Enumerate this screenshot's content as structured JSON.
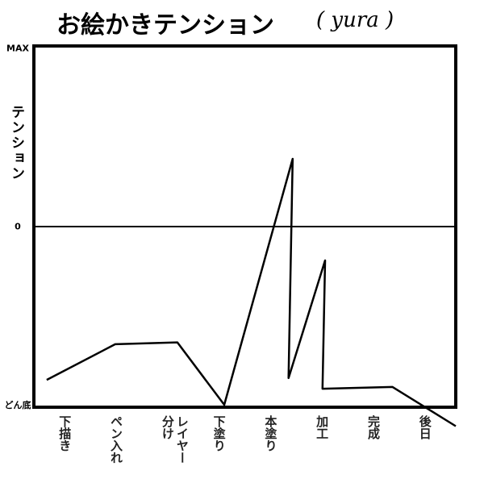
{
  "chart_data": {
    "type": "line",
    "title": "お絵かきテンション",
    "author": "( yura )",
    "ylabel": "テンション",
    "x": [
      -0.35,
      0.98,
      2.19,
      3.1,
      4.43,
      4.35,
      5.06,
      5.01,
      6.37,
      7.6
    ],
    "values": [
      -0.86,
      -0.66,
      -0.65,
      -1.0,
      0.38,
      -0.85,
      -0.19,
      -0.91,
      -0.9,
      -1.12
    ],
    "color": "#000000",
    "xlim": [
      -0.6,
      7.6
    ],
    "xticks": [
      {
        "value": 0,
        "label": "下描き"
      },
      {
        "value": 1,
        "label": "ペン入れ"
      },
      {
        "value": 2,
        "label": "レイヤー分け"
      },
      {
        "value": 3,
        "label": "下塗り"
      },
      {
        "value": 4,
        "label": "本塗り"
      },
      {
        "value": 5,
        "label": "加工"
      },
      {
        "value": 6,
        "label": "完成"
      },
      {
        "value": 7,
        "label": "後日"
      }
    ],
    "ylim": [
      -1,
      1
    ],
    "yticks": [
      {
        "value": -1,
        "label": "どん底"
      },
      0,
      {
        "value": 1,
        "label": "MAX"
      }
    ]
  }
}
